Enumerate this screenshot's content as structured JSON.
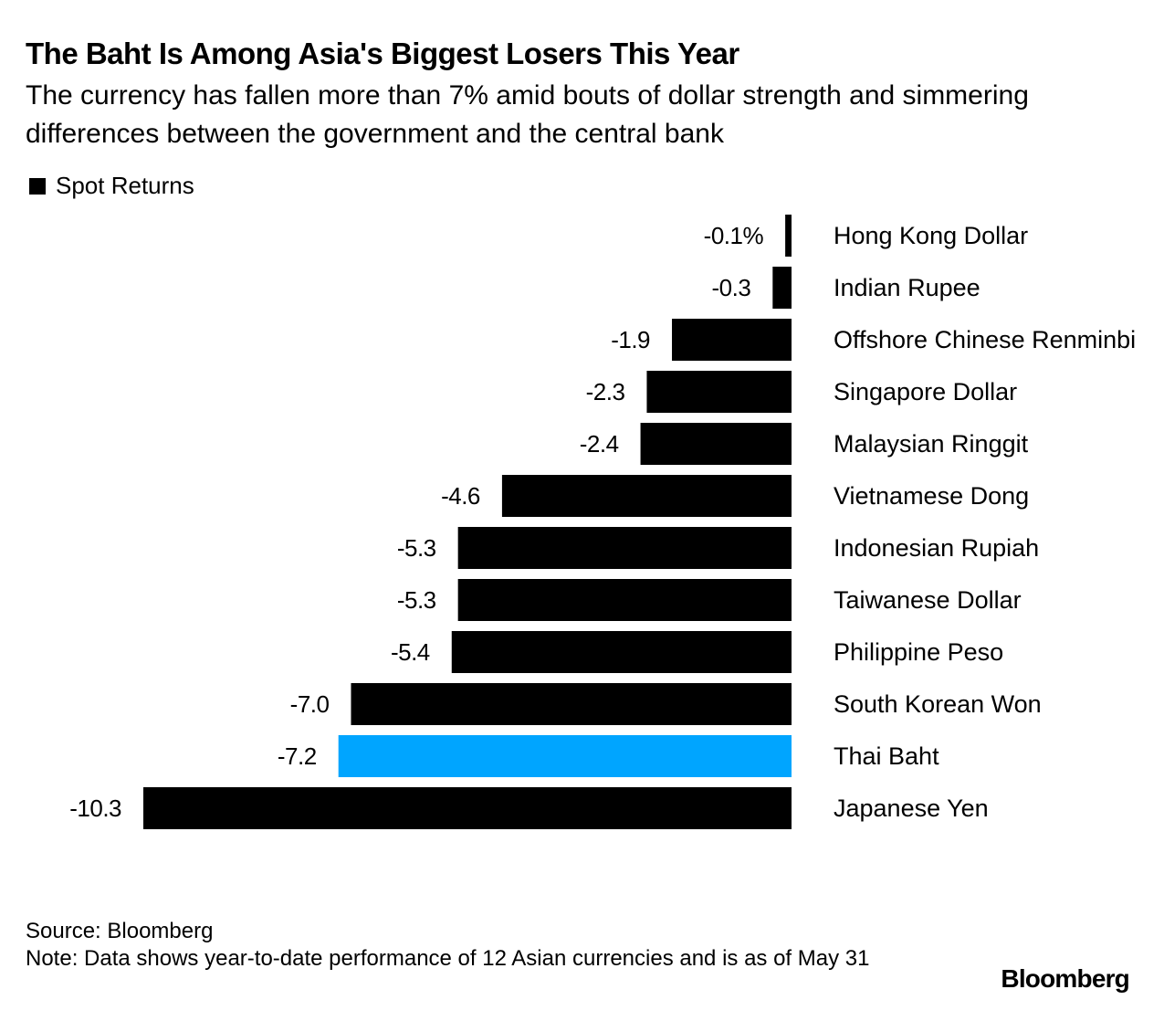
{
  "chart_data": {
    "type": "bar",
    "orientation": "horizontal",
    "title": "The Baht Is Among Asia's Biggest Losers This Year",
    "subtitle": "The currency has fallen more than 7% amid bouts of dollar strength and simmering differences between the government and the central bank",
    "legend": {
      "label": "Spot Returns",
      "placement": "top-left"
    },
    "categories": [
      "Hong Kong Dollar",
      "Indian Rupee",
      "Offshore Chinese Renminbi",
      "Singapore Dollar",
      "Malaysian Ringgit",
      "Vietnamese Dong",
      "Indonesian Rupiah",
      "Taiwanese Dollar",
      "Philippine Peso",
      "South Korean Won",
      "Thai Baht",
      "Japanese Yen"
    ],
    "values": [
      -0.1,
      -0.3,
      -1.9,
      -2.3,
      -2.4,
      -4.6,
      -5.3,
      -5.3,
      -5.4,
      -7.0,
      -7.2,
      -10.3
    ],
    "value_labels": [
      "-0.1%",
      "-0.3",
      "-1.9",
      "-2.3",
      "-2.4",
      "-4.6",
      "-5.3",
      "-5.3",
      "-5.4",
      "-7.0",
      "-7.2",
      "-10.3"
    ],
    "highlight": "Thai Baht",
    "colors": {
      "default": "#000000",
      "highlight": "#00A5FF"
    },
    "xlim": [
      -10.3,
      0
    ],
    "grid": false
  },
  "footer": {
    "source": "Source: Bloomberg",
    "note": "Note: Data shows year-to-date performance of 12 Asian currencies and is as of May 31",
    "logo": "Bloomberg"
  }
}
